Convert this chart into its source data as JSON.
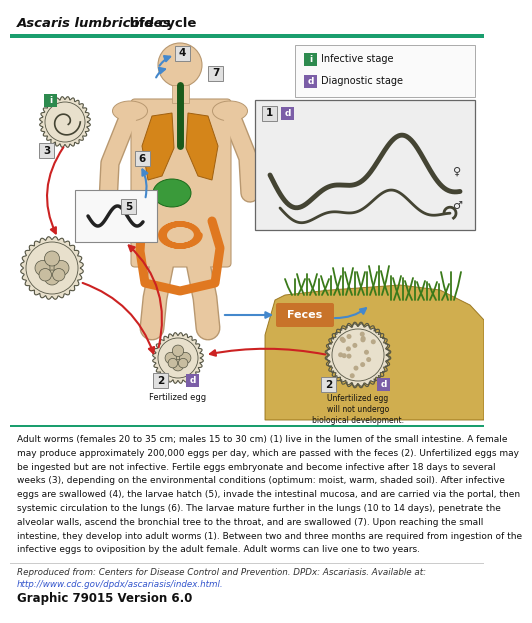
{
  "title_italic": "Ascaris lumbricoides",
  "title_normal": " life cycle",
  "top_bar_color": "#1a9e6e",
  "background_color": "#ffffff",
  "infective_color": "#2d8a4e",
  "diagnostic_color": "#7b5ea7",
  "infective_label": "Infective stage",
  "diagnostic_label": "Diagnostic stage",
  "description_lines": [
    "Adult worms (females 20 to 35 cm; males 15 to 30 cm) (1) live in the lumen of the small intestine. A female",
    "may produce approximately 200,000 eggs per day, which are passed with the feces (2). Unfertilized eggs may",
    "be ingested but are not infective. Fertile eggs embryonate and become infective after 18 days to several",
    "weeks (3), depending on the environmental conditions (optimum: moist, warm, shaded soil). After infective",
    "eggs are swallowed (4), the larvae hatch (5), invade the intestinal mucosa, and are carried via the portal, then",
    "systemic circulation to the lungs (6). The larvae mature further in the lungs (10 to 14 days), penetrate the",
    "alveolar walls, ascend the bronchial tree to the throat, and are swallowed (7). Upon reaching the small",
    "intestine, they develop into adult worms (1). Between two and three months are required from ingestion of the",
    "infective eggs to oviposition by the adult female. Adult worms can live one to two years."
  ],
  "reproduced_text": "Reproduced from: Centers for Disease Control and Prevention. DPDx: Ascariasis. Available at:",
  "url_text": "http://www.cdc.gov/dpdx/ascariasis/index.html.",
  "url_color": "#3355cc",
  "graphic_text": "Graphic 79015 Version 6.0",
  "feces_color": "#c8732a",
  "arrow_blue": "#4488cc",
  "arrow_red": "#cc2222",
  "skin_color": "#e8c8a0",
  "skin_edge": "#b89870",
  "lung_color": "#d4851a",
  "intestine_color": "#e07820",
  "stomach_color": "#3a9a3a",
  "trachea_color": "#1a5a1a",
  "egg_fill": "#e8e0cc",
  "egg_edge": "#555544",
  "worm_color": "#444433",
  "soil_color": "#c8a030",
  "grass_color": "#3a7a1a",
  "label_bg": "#e0e0e0",
  "label_edge": "#888888"
}
